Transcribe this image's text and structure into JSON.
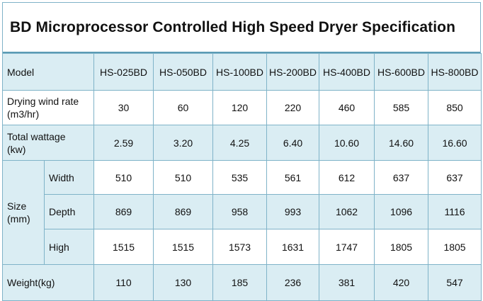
{
  "title": "BD Microprocessor Controlled High Speed Dryer Specification",
  "header": {
    "label": "Model",
    "models": [
      "HS-025BD",
      "HS-050BD",
      "HS-100BD",
      "HS-200BD",
      "HS-400BD",
      "HS-600BD",
      "HS-800BD"
    ]
  },
  "rows": {
    "wind": {
      "label_line1": "Drying wind rate",
      "label_line2": "(m3/hr)",
      "values": [
        "30",
        "60",
        "120",
        "220",
        "460",
        "585",
        "850"
      ]
    },
    "wattage": {
      "label_line1": "Total wattage",
      "label_line2": "(kw)",
      "values": [
        "2.59",
        "3.20",
        "4.25",
        "6.40",
        "10.60",
        "14.60",
        "16.60"
      ]
    },
    "size": {
      "label_line1": "Size",
      "label_line2": "(mm)",
      "width": {
        "label": "Width",
        "values": [
          "510",
          "510",
          "535",
          "561",
          "612",
          "637",
          "637"
        ]
      },
      "depth": {
        "label": "Depth",
        "values": [
          "869",
          "869",
          "958",
          "993",
          "1062",
          "1096",
          "1116"
        ]
      },
      "high": {
        "label": "High",
        "values": [
          "1515",
          "1515",
          "1573",
          "1631",
          "1747",
          "1805",
          "1805"
        ]
      }
    },
    "weight": {
      "label": "Weight(kg)",
      "values": [
        "110",
        "130",
        "185",
        "236",
        "381",
        "420",
        "547"
      ]
    }
  }
}
